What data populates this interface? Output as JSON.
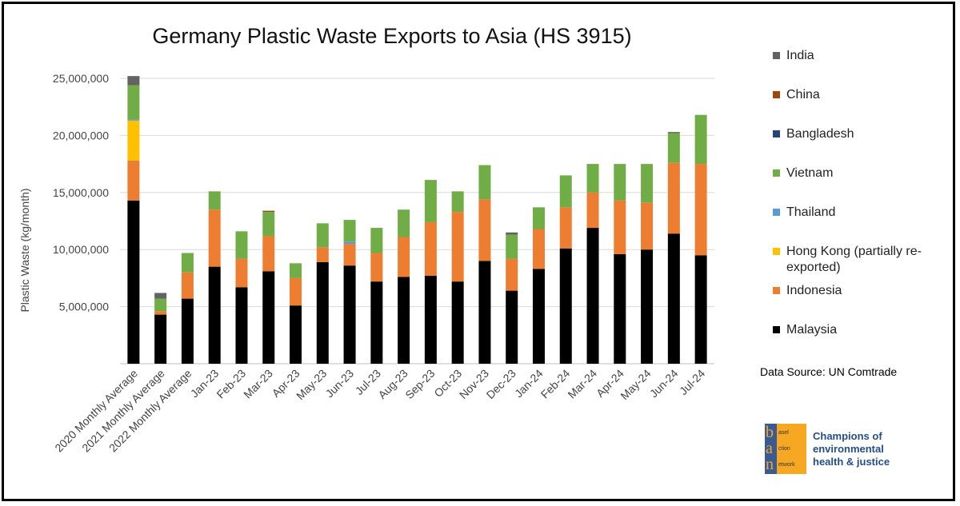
{
  "chart_data": {
    "type": "bar",
    "stacked": true,
    "title": "Germany Plastic Waste Exports to Asia (HS 3915)",
    "ylabel": "Plastic Waste (kg/month)",
    "ylim": [
      0,
      25000000
    ],
    "yticks": [
      "5,000,000",
      "10,000,000",
      "15,000,000",
      "20,000,000",
      "25,000,000"
    ],
    "ytick_values": [
      5000000,
      10000000,
      15000000,
      20000000,
      25000000
    ],
    "grid": true,
    "legend_position": "right",
    "categories": [
      "2020 Monthly Average",
      "2021 Monthly Average",
      "2022 Monthly Average",
      "Jan-23",
      "Feb-23",
      "Mar-23",
      "Apr-23",
      "May-23",
      "Jun-23",
      "Jul-23",
      "Aug-23",
      "Sep-23",
      "Oct-23",
      "Nov-23",
      "Dec-23",
      "Jan-24",
      "Feb-24",
      "Mar-24",
      "Apr-24",
      "May-24",
      "Jun-24",
      "Jul-24"
    ],
    "series": [
      {
        "name": "Malaysia",
        "color": "#000000",
        "values": [
          14300000,
          4300000,
          5700000,
          8500000,
          6700000,
          8100000,
          5100000,
          8900000,
          8600000,
          7200000,
          7600000,
          7700000,
          7200000,
          9000000,
          6400000,
          8300000,
          10100000,
          11900000,
          9600000,
          10000000,
          11400000,
          9500000
        ]
      },
      {
        "name": "Indonesia",
        "color": "#ed7d31",
        "values": [
          3500000,
          300000,
          2300000,
          5000000,
          2500000,
          3100000,
          2400000,
          1300000,
          1900000,
          2500000,
          3500000,
          4700000,
          6100000,
          5400000,
          2800000,
          3500000,
          3600000,
          3100000,
          4700000,
          4100000,
          6200000,
          8000000
        ]
      },
      {
        "name": "Hong Kong (partially re-exported)",
        "color": "#ffc000",
        "values": [
          3500000,
          0,
          0,
          0,
          0,
          0,
          0,
          0,
          0,
          0,
          0,
          0,
          0,
          0,
          0,
          0,
          0,
          0,
          0,
          0,
          0,
          0
        ]
      },
      {
        "name": "Thailand",
        "color": "#5b9bd5",
        "values": [
          100000,
          0,
          0,
          0,
          0,
          0,
          0,
          0,
          200000,
          0,
          0,
          0,
          0,
          0,
          0,
          0,
          0,
          0,
          0,
          0,
          0,
          0
        ]
      },
      {
        "name": "Vietnam",
        "color": "#70ad47",
        "values": [
          3000000,
          1100000,
          1700000,
          1600000,
          2400000,
          2100000,
          1300000,
          2100000,
          1900000,
          2200000,
          2400000,
          3700000,
          1800000,
          3000000,
          2100000,
          1900000,
          2800000,
          2500000,
          3200000,
          3400000,
          2600000,
          4300000
        ]
      },
      {
        "name": "Bangladesh",
        "color": "#264478",
        "values": [
          0,
          0,
          0,
          0,
          0,
          0,
          0,
          0,
          0,
          0,
          0,
          0,
          0,
          0,
          0,
          0,
          0,
          0,
          0,
          0,
          0,
          0
        ]
      },
      {
        "name": "China",
        "color": "#9e480e",
        "values": [
          0,
          0,
          0,
          0,
          0,
          100000,
          0,
          0,
          0,
          0,
          0,
          0,
          0,
          0,
          0,
          0,
          0,
          0,
          0,
          0,
          0,
          0
        ]
      },
      {
        "name": "India",
        "color": "#636363",
        "values": [
          800000,
          500000,
          0,
          0,
          0,
          0,
          0,
          0,
          0,
          0,
          0,
          0,
          0,
          0,
          200000,
          0,
          0,
          0,
          0,
          0,
          100000,
          0
        ]
      }
    ],
    "legend": [
      {
        "name": "India",
        "color": "#636363"
      },
      {
        "name": "China",
        "color": "#9e480e"
      },
      {
        "name": "Bangladesh",
        "color": "#264478"
      },
      {
        "name": "Vietnam",
        "color": "#70ad47"
      },
      {
        "name": "Thailand",
        "color": "#5b9bd5"
      },
      {
        "name": "Hong Kong (partially re-exported)",
        "color": "#ffc000"
      },
      {
        "name": "Indonesia",
        "color": "#ed7d31"
      },
      {
        "name": "Malaysia",
        "color": "#000000"
      }
    ]
  },
  "source": "Data Source: UN Comtrade",
  "logo": {
    "letters": [
      "b",
      "a",
      "n"
    ],
    "words": [
      "asel",
      "ction",
      "etwork"
    ],
    "tagline": [
      "Champions of",
      "environmental",
      "health & justice"
    ],
    "colors": {
      "strip": "#3a5b92",
      "box": "#f7a823",
      "text": "#244e8a"
    }
  }
}
